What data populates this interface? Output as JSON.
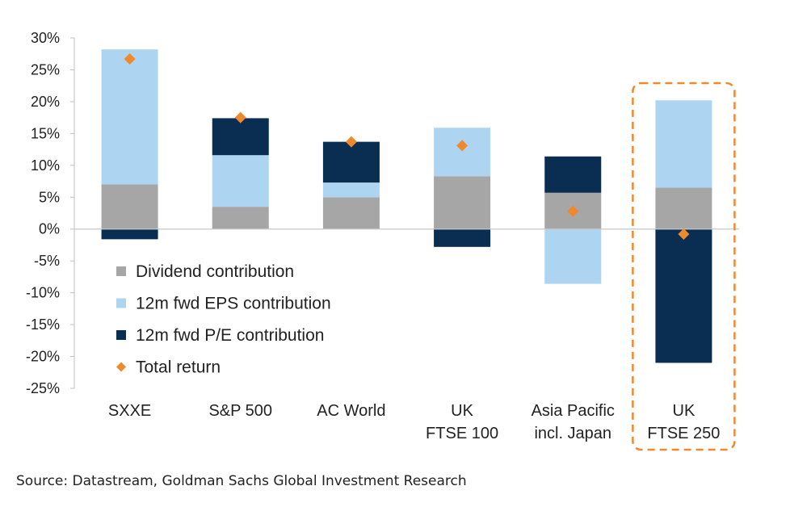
{
  "chart_data": {
    "type": "bar",
    "stacked": true,
    "categories": [
      [
        "SXXE"
      ],
      [
        "S&P 500"
      ],
      [
        "AC World"
      ],
      [
        "UK",
        "FTSE 100"
      ],
      [
        "Asia Pacific",
        "incl. Japan"
      ],
      [
        "UK",
        "FTSE 250"
      ]
    ],
    "series": [
      {
        "name": "Dividend contribution",
        "color": "#a6a6a6",
        "values": [
          7.0,
          3.5,
          5.0,
          8.3,
          5.7,
          6.5
        ]
      },
      {
        "name": "12m fwd EPS contribution",
        "color": "#add4f0",
        "values": [
          21.2,
          8.1,
          2.3,
          7.6,
          -8.6,
          13.7
        ]
      },
      {
        "name": "12m fwd P/E contribution",
        "color": "#0a2d52",
        "values": [
          -1.6,
          5.8,
          6.4,
          -2.8,
          5.7,
          -21.0
        ]
      }
    ],
    "total_return": {
      "name": "Total return",
      "color": "#f0892d",
      "values": [
        26.7,
        17.5,
        13.7,
        13.1,
        2.8,
        -0.8
      ]
    },
    "ylim": [
      -25,
      30
    ],
    "yticks": [
      30,
      25,
      20,
      15,
      10,
      5,
      0,
      -5,
      -10,
      -15,
      -20,
      -25
    ],
    "ytick_labels": [
      "30%",
      "25%",
      "20%",
      "15%",
      "10%",
      "5%",
      "0%",
      "-5%",
      "-10%",
      "-15%",
      "-20%",
      "-25%"
    ],
    "highlight_category": 5,
    "highlight_color": "#f0892d",
    "legend_position": "lower-left inside plot",
    "grid": false
  },
  "source": "Source: Datastream, Goldman Sachs Global Investment Research"
}
